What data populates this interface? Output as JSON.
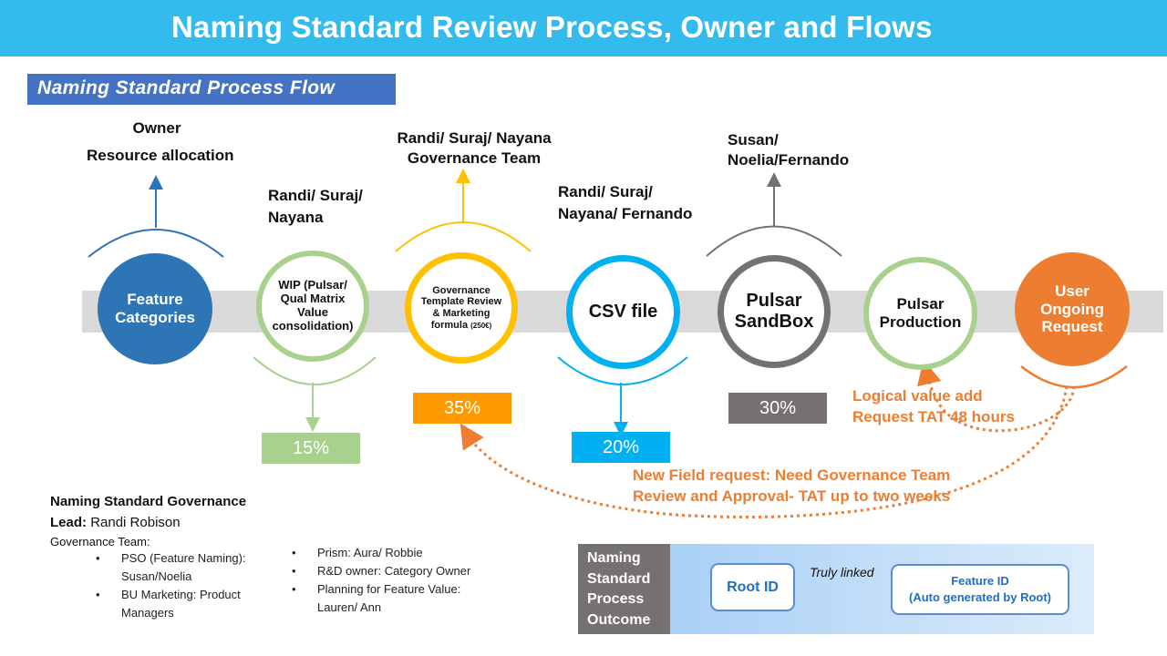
{
  "header": {
    "title": "Naming Standard Review Process, Owner and Flows"
  },
  "section_tag": "Naming Standard Process  Flow",
  "owner_block": {
    "owner": "Owner",
    "resource": "Resource allocation"
  },
  "owners": {
    "wip_l1": "Randi/ Suraj/",
    "wip_l2": "Nayana",
    "gov_l1": "Randi/ Suraj/ Nayana",
    "gov_l2": "Governance Team",
    "csv_l1": "Randi/ Suraj/",
    "csv_l2": "Nayana/ Fernando",
    "sandbox_l1": "Susan/",
    "sandbox_l2": "Noelia/Fernando"
  },
  "stages": {
    "feature": {
      "l1": "Feature",
      "l2": "Categories"
    },
    "wip": {
      "l1": "WIP (Pulsar/",
      "l2": "Qual Matrix",
      "l3": "Value",
      "l4": "consolidation)"
    },
    "gov": {
      "l1": "Governance",
      "l2": "Template  Review",
      "l3": "& Marketing",
      "l4": "formula",
      "l4_small": "(250€)"
    },
    "csv": {
      "l1": "CSV file"
    },
    "sandbox": {
      "l1": "Pulsar",
      "l2": "SandBox"
    },
    "production": {
      "l1": "Pulsar",
      "l2": "Production"
    },
    "user": {
      "l1": "User",
      "l2": "Ongoing",
      "l3": "Request"
    }
  },
  "percents": {
    "wip": "15%",
    "gov": "35%",
    "csv": "20%",
    "sandbox": "30%"
  },
  "notes": {
    "logical_l1": "Logical value add",
    "logical_l2": "Request TAT 48 hours",
    "newfield_l1": "New Field request: Need Governance  Team",
    "newfield_l2": "Review and Approval-  TAT up to two weeks"
  },
  "governance": {
    "heading": "Naming Standard  Governance",
    "lead_label": "Lead:",
    "lead_name": "Randi Robison",
    "team_label": "Governance Team:",
    "bullets_left": [
      "PSO (Feature Naming):",
      "Susan/Noelia",
      "BU Marketing: Product",
      "Managers"
    ],
    "bullets_right": [
      "Prism: Aura/ Robbie",
      "R&D owner:  Category Owner",
      "Planning for Feature Value:",
      "Lauren/ Ann"
    ]
  },
  "outcome": {
    "label_lines": [
      "Naming",
      "Standard",
      "Process",
      "Outcome"
    ],
    "root_id": "Root ID",
    "linked": "Truly linked",
    "feature_id_l1": "Feature ID",
    "feature_id_l2": "(Auto generated by Root)"
  },
  "colors": {
    "title_bg": "#33bbee",
    "section_bg": "#4472c4",
    "feature": "#2e75b6",
    "wip": "#a9d18e",
    "gov": "#ffc000",
    "csv": "#00b0f0",
    "sandbox": "#767171",
    "production": "#a9d18e",
    "user": "#ed7d31",
    "pct_wip": "#a9d18e",
    "pct_gov": "#ff9900",
    "pct_csv": "#00b0f0",
    "pct_sandbox": "#767171"
  }
}
